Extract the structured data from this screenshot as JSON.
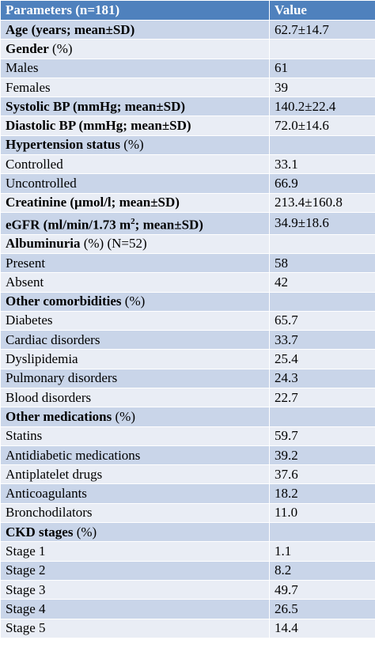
{
  "header": {
    "param": "Parameters (n=181)",
    "value": "Value"
  },
  "rows": [
    {
      "label": "Age (years; mean±SD)",
      "value": "62.7±14.7",
      "label_bold": true,
      "shade": "dark"
    },
    {
      "label": "Gender",
      "suffix": " (%)",
      "value": "",
      "label_bold": true,
      "shade": "light"
    },
    {
      "label": "Males",
      "value": "61",
      "label_bold": false,
      "shade": "dark"
    },
    {
      "label": "Females",
      "value": "39",
      "label_bold": false,
      "shade": "light"
    },
    {
      "label": "Systolic BP (mmHg; mean±SD)",
      "value": "140.2±22.4",
      "label_bold": true,
      "shade": "dark"
    },
    {
      "label": "Diastolic BP (mmHg; mean±SD)",
      "value": "72.0±14.6",
      "label_bold": true,
      "shade": "light"
    },
    {
      "label": "Hypertension status",
      "suffix": " (%)",
      "value": "",
      "label_bold": true,
      "shade": "dark"
    },
    {
      "label": "Controlled",
      "value": "33.1",
      "label_bold": false,
      "shade": "light"
    },
    {
      "label": "Uncontrolled",
      "value": "66.9",
      "label_bold": false,
      "shade": "dark"
    },
    {
      "label": "Creatinine (µmol/l; mean±SD)",
      "value": "213.4±160.8",
      "label_bold": true,
      "shade": "light"
    },
    {
      "label": "eGFR (ml/min/1.73 m",
      "sup": "2",
      "label_after_sup": "; mean±SD)",
      "value": "34.9±18.6",
      "label_bold": true,
      "shade": "dark"
    },
    {
      "label": "Albuminuria",
      "suffix": " (%) (N=52)",
      "value": "",
      "label_bold": true,
      "shade": "light"
    },
    {
      "label": "Present",
      "value": "58",
      "label_bold": false,
      "shade": "dark"
    },
    {
      "label": "Absent",
      "value": "42",
      "label_bold": false,
      "shade": "light"
    },
    {
      "label": "Other comorbidities",
      "suffix": " (%)",
      "value": "",
      "label_bold": true,
      "shade": "dark"
    },
    {
      "label": "Diabetes",
      "value": "65.7",
      "label_bold": false,
      "shade": "light"
    },
    {
      "label": "Cardiac disorders",
      "value": "33.7",
      "label_bold": false,
      "shade": "dark"
    },
    {
      "label": "Dyslipidemia",
      "value": "25.4",
      "label_bold": false,
      "shade": "light"
    },
    {
      "label": "Pulmonary disorders",
      "value": "24.3",
      "label_bold": false,
      "shade": "dark"
    },
    {
      "label": "Blood disorders",
      "value": "22.7",
      "label_bold": false,
      "shade": "light"
    },
    {
      "label": "Other medications",
      "suffix": " (%)",
      "value": "",
      "label_bold": true,
      "shade": "dark"
    },
    {
      "label": "Statins",
      "value": "59.7",
      "label_bold": false,
      "shade": "light"
    },
    {
      "label": "Antidiabetic medications",
      "value": "39.2",
      "label_bold": false,
      "shade": "dark"
    },
    {
      "label": "Antiplatelet drugs",
      "value": "37.6",
      "label_bold": false,
      "shade": "light"
    },
    {
      "label": "Anticoagulants",
      "value": "18.2",
      "label_bold": false,
      "shade": "dark"
    },
    {
      "label": "Bronchodilators",
      "value": "11.0",
      "label_bold": false,
      "shade": "light"
    },
    {
      "label": "CKD stages",
      "suffix": " (%)",
      "value": "",
      "label_bold": true,
      "shade": "dark"
    },
    {
      "label": "Stage 1",
      "value": "1.1",
      "label_bold": false,
      "shade": "light"
    },
    {
      "label": "Stage 2",
      "value": "8.2",
      "label_bold": false,
      "shade": "dark"
    },
    {
      "label": "Stage 3",
      "value": "49.7",
      "label_bold": false,
      "shade": "light"
    },
    {
      "label": "Stage 4",
      "value": "26.5",
      "label_bold": false,
      "shade": "dark"
    },
    {
      "label": "Stage 5",
      "value": "14.4",
      "label_bold": false,
      "shade": "light"
    }
  ],
  "colors": {
    "header_bg": "#4f81bd",
    "row_dark": "#c9d5e9",
    "row_light": "#e9edf5"
  }
}
